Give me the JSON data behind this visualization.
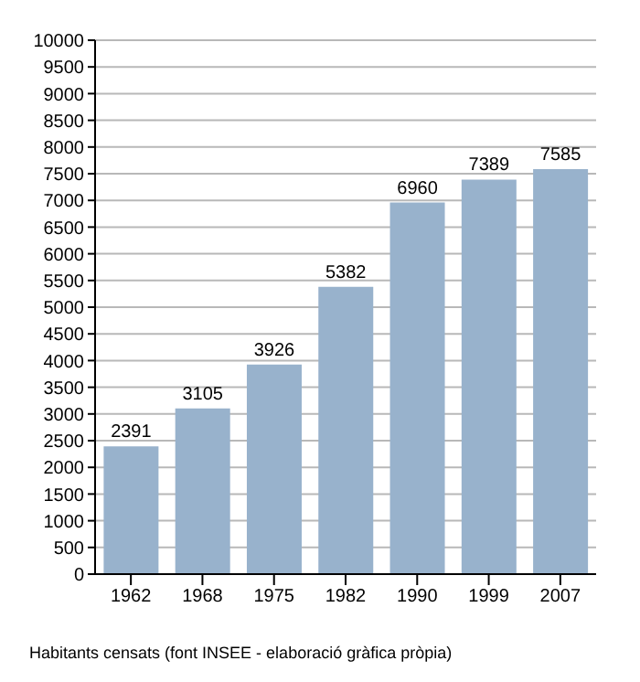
{
  "chart_data": {
    "type": "bar",
    "categories": [
      "1962",
      "1968",
      "1975",
      "1982",
      "1990",
      "1999",
      "2007"
    ],
    "values": [
      2391,
      3105,
      3926,
      5382,
      6960,
      7389,
      7585
    ],
    "color": "#98b2cc",
    "data_labels": true,
    "ylim": [
      0,
      10000
    ],
    "yticks": [
      0,
      500,
      1000,
      1500,
      2000,
      2500,
      3000,
      3500,
      4000,
      4500,
      5000,
      5500,
      6000,
      6500,
      7000,
      7500,
      8000,
      8500,
      9000,
      9500,
      10000
    ],
    "grid": "y",
    "annotations": [
      "Habitants censats (font INSEE - elaboració gràfica pròpia)"
    ]
  }
}
